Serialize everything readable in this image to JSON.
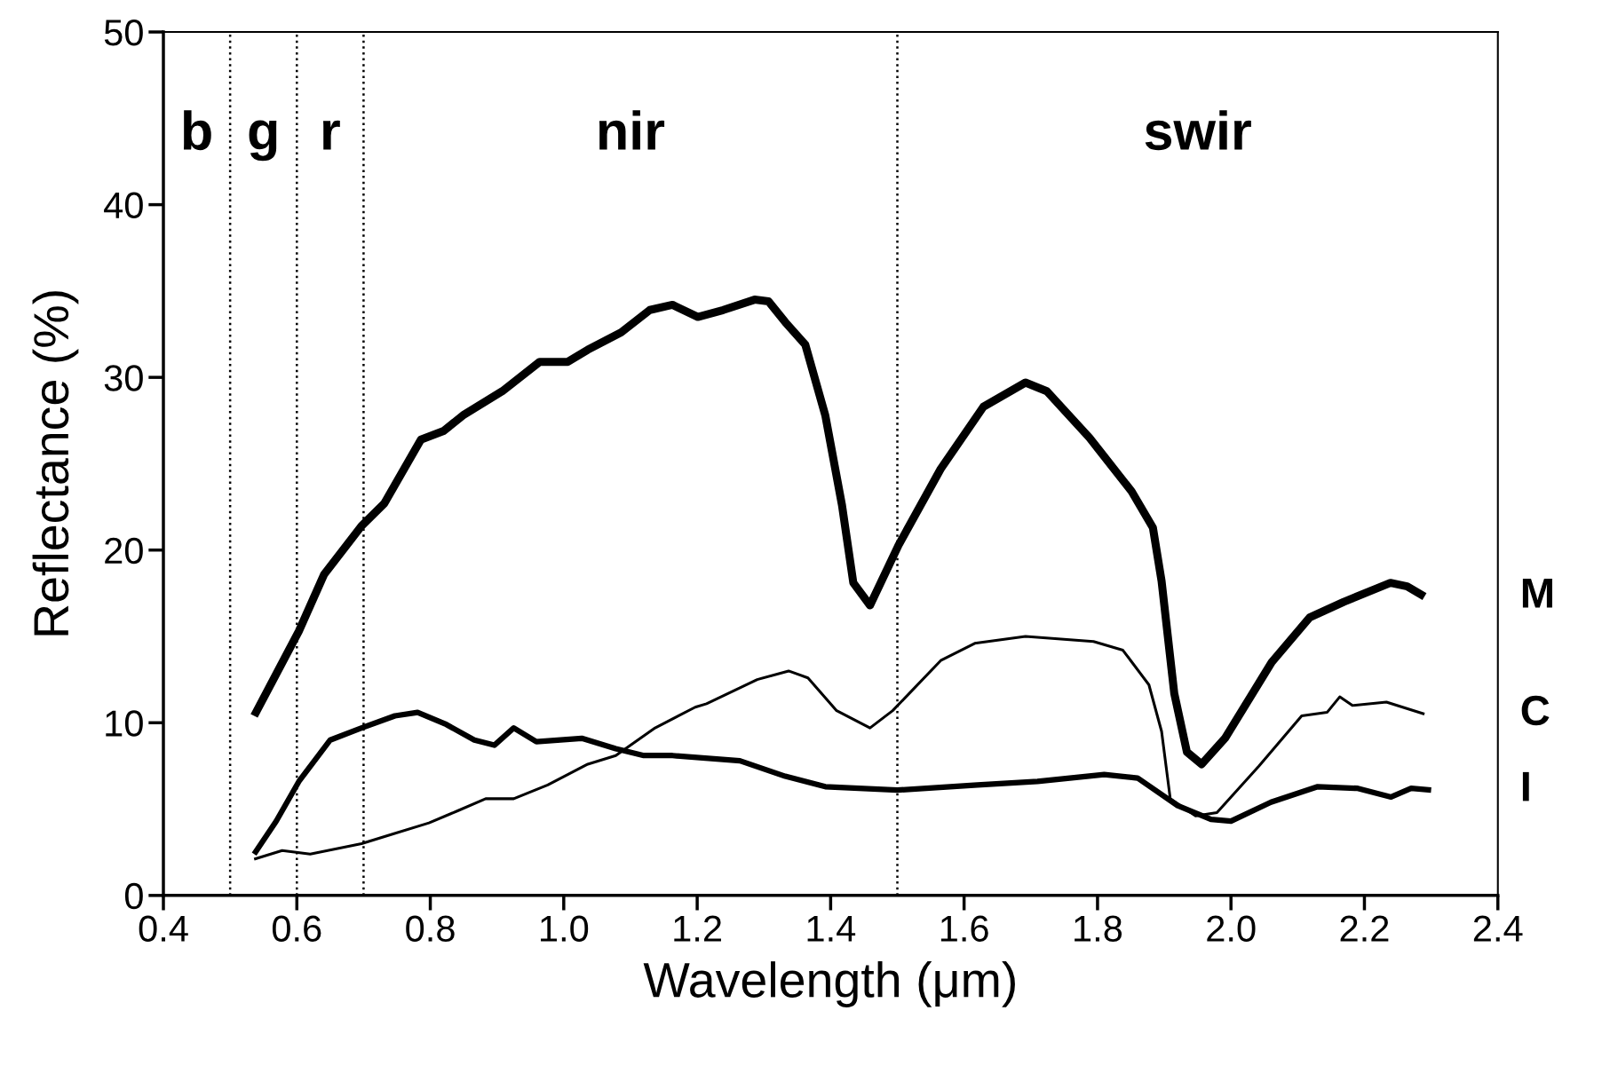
{
  "chart_data": {
    "type": "line",
    "xlabel": "Wavelength (μm)",
    "ylabel": "Reflectance (%)",
    "xlim": [
      0.4,
      2.4
    ],
    "xticks": [
      0.4,
      0.6,
      0.8,
      {
        "value": 1,
        "label": "1.0"
      },
      1.2,
      1.4,
      1.6,
      1.8,
      {
        "value": 2,
        "label": "2.0"
      },
      2.2,
      2.4
    ],
    "ylim": [
      0,
      50
    ],
    "yticks": [
      0,
      10,
      20,
      30,
      40,
      50
    ],
    "grid": false,
    "marker": "none",
    "line_style": "solid",
    "series": [
      {
        "name": "M",
        "color": "#000000",
        "x": [
          0.536,
          0.603,
          0.641,
          0.697,
          0.731,
          0.786,
          0.82,
          0.849,
          0.908,
          0.964,
          1.006,
          1.036,
          1.086,
          1.129,
          1.163,
          1.201,
          1.239,
          1.286,
          1.307,
          1.332,
          1.362,
          1.392,
          1.417,
          1.434,
          1.459,
          1.502,
          1.565,
          1.629,
          1.692,
          1.724,
          1.788,
          1.851,
          1.883,
          1.896,
          1.915,
          1.934,
          1.956,
          1.991,
          2.061,
          2.118,
          2.169,
          2.239,
          2.264,
          2.29
        ],
        "values": [
          10.4,
          15.3,
          18.6,
          21.4,
          22.7,
          26.4,
          26.9,
          27.8,
          29.2,
          30.9,
          30.9,
          31.6,
          32.6,
          33.9,
          34.2,
          33.5,
          33.9,
          34.5,
          34.4,
          33.2,
          31.9,
          27.8,
          22.6,
          18.1,
          16.8,
          20.3,
          24.7,
          28.3,
          29.7,
          29.2,
          26.5,
          23.4,
          21.3,
          18.2,
          11.7,
          8.3,
          7.6,
          9.1,
          13.5,
          16.1,
          17.0,
          18.1,
          17.9,
          17.3
        ]
      },
      {
        "name": "C",
        "color": "#000000",
        "x": [
          0.536,
          0.578,
          0.62,
          0.697,
          0.739,
          0.798,
          0.841,
          0.883,
          0.925,
          0.976,
          1.036,
          1.078,
          1.137,
          1.197,
          1.214,
          1.29,
          1.337,
          1.366,
          1.409,
          1.459,
          1.493,
          1.565,
          1.616,
          1.692,
          1.794,
          1.838,
          1.877,
          1.896,
          1.909,
          1.947,
          1.979,
          2.042,
          2.106,
          2.144,
          2.163,
          2.182,
          2.233,
          2.29
        ],
        "values": [
          2.1,
          2.6,
          2.4,
          3.0,
          3.5,
          4.2,
          4.9,
          5.6,
          5.6,
          6.4,
          7.6,
          8.1,
          9.7,
          10.9,
          11.1,
          12.5,
          13.0,
          12.6,
          10.7,
          9.7,
          10.7,
          13.6,
          14.6,
          15.0,
          14.7,
          14.2,
          12.2,
          9.5,
          5.6,
          4.6,
          4.8,
          7.5,
          10.4,
          10.6,
          11.5,
          11.0,
          11.2,
          10.5
        ]
      },
      {
        "name": "I",
        "color": "#000000",
        "x": [
          0.536,
          0.569,
          0.603,
          0.65,
          0.697,
          0.747,
          0.781,
          0.824,
          0.866,
          0.896,
          0.925,
          0.959,
          1.027,
          1.078,
          1.12,
          1.163,
          1.264,
          1.332,
          1.392,
          1.5,
          1.62,
          1.71,
          1.81,
          1.86,
          1.92,
          1.97,
          2.0,
          2.06,
          2.13,
          2.19,
          2.24,
          2.27,
          2.3
        ],
        "values": [
          2.4,
          4.3,
          6.6,
          9.0,
          9.7,
          10.4,
          10.6,
          9.9,
          9.0,
          8.7,
          9.7,
          8.9,
          9.1,
          8.5,
          8.1,
          8.1,
          7.8,
          6.9,
          6.3,
          6.1,
          6.4,
          6.6,
          7.0,
          6.8,
          5.2,
          4.4,
          4.3,
          5.4,
          6.3,
          6.2,
          5.7,
          6.2,
          6.1
        ]
      }
    ],
    "ref_lines": [
      {
        "axis": "x",
        "value": 0.5,
        "line_style": "dotted",
        "color": "#000000"
      },
      {
        "axis": "x",
        "value": 0.6,
        "line_style": "dotted",
        "color": "#000000"
      },
      {
        "axis": "x",
        "value": 0.7,
        "line_style": "dotted",
        "color": "#000000"
      },
      {
        "axis": "x",
        "value": 1.5,
        "line_style": "dotted",
        "color": "#000000"
      }
    ],
    "annotations": [
      "b",
      "g",
      "r",
      "nir",
      "swir"
    ]
  }
}
